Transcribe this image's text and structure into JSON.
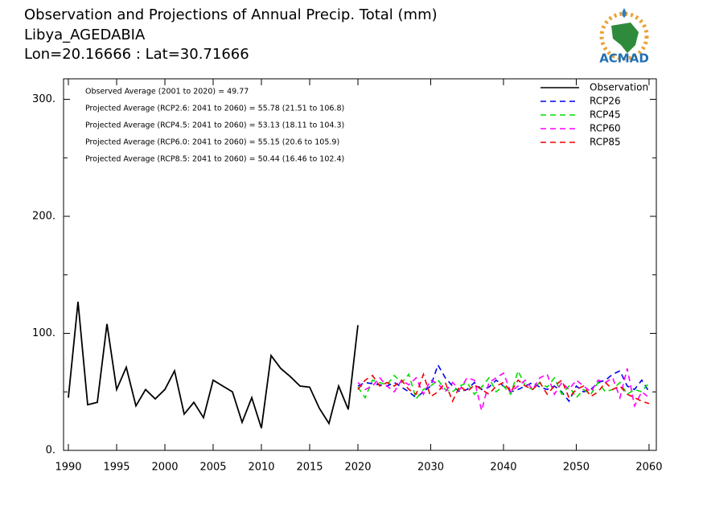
{
  "chart_data": {
    "type": "line",
    "title": "Observation and Projections of Annual Precip. Total (mm)",
    "subtitle": "Libya_AGEDABIA",
    "location": "Lon=20.16666 : Lat=30.71666",
    "logo_text": "ACMAD",
    "annotations": [
      "Observed Average (2001 to 2020) = 49.77",
      "Projected Average (RCP2.6: 2041 to 2060) = 55.78 (21.51 to 106.8)",
      "Projected Average (RCP4.5: 2041 to 2060) = 53.13 (18.11 to 104.3)",
      "Projected Average (RCP6.0: 2041 to 2060) = 55.15 (20.6 to 105.9)",
      "Projected Average (RCP8.5: 2041 to 2060) = 50.44 (16.46 to 102.4)"
    ],
    "xlim": [
      1989.5,
      2061
    ],
    "xticks": [
      1990,
      1995,
      2000,
      2005,
      2010,
      2015,
      2020,
      2030,
      2040,
      2050,
      2060
    ],
    "ylim": [
      0,
      317.5
    ],
    "yticks": [
      {
        "value": 0,
        "label": "0."
      },
      {
        "value": 100,
        "label": "100."
      },
      {
        "value": 200,
        "label": "200."
      },
      {
        "value": 300,
        "label": "300."
      }
    ],
    "y_minor_ticks": [
      50,
      150,
      250
    ],
    "series": [
      {
        "name": "Observation",
        "color": "#000000",
        "dashed": false,
        "x": [
          1990,
          1991,
          1992,
          1993,
          1994,
          1995,
          1996,
          1997,
          1998,
          1999,
          2000,
          2001,
          2002,
          2003,
          2004,
          2005,
          2006,
          2007,
          2008,
          2009,
          2010,
          2011,
          2012,
          2013,
          2014,
          2015,
          2016,
          2017,
          2018,
          2019,
          2020
        ],
        "values": [
          45,
          127,
          39,
          41,
          108,
          52,
          71,
          38,
          52,
          44,
          52,
          68,
          31,
          41,
          28,
          60,
          55,
          50,
          24,
          45,
          19,
          81,
          70,
          63,
          55,
          54,
          36,
          23,
          55,
          35,
          107
        ]
      },
      {
        "name": "RCP26",
        "color": "#0000ee",
        "dashed": true,
        "x": [
          2020,
          2021,
          2022,
          2023,
          2024,
          2025,
          2026,
          2027,
          2028,
          2029,
          2030,
          2031,
          2032,
          2033,
          2034,
          2035,
          2036,
          2037,
          2038,
          2039,
          2040,
          2041,
          2042,
          2043,
          2044,
          2045,
          2046,
          2047,
          2048,
          2049,
          2050,
          2051,
          2052,
          2053,
          2054,
          2055,
          2056,
          2057,
          2058,
          2059,
          2060
        ],
        "values": [
          55,
          58,
          57,
          56,
          55,
          58,
          54,
          50,
          45,
          50,
          55,
          73,
          62,
          55,
          50,
          52,
          58,
          52,
          54,
          60,
          55,
          50,
          52,
          55,
          58,
          54,
          52,
          55,
          50,
          42,
          55,
          50,
          52,
          58,
          60,
          65,
          68,
          55,
          52,
          60,
          50
        ]
      },
      {
        "name": "RCP45",
        "color": "#00dd00",
        "dashed": true,
        "x": [
          2020,
          2021,
          2022,
          2023,
          2024,
          2025,
          2026,
          2027,
          2028,
          2029,
          2030,
          2031,
          2032,
          2033,
          2034,
          2035,
          2036,
          2037,
          2038,
          2039,
          2040,
          2041,
          2042,
          2043,
          2044,
          2045,
          2046,
          2047,
          2048,
          2049,
          2050,
          2051,
          2052,
          2053,
          2054,
          2055,
          2056,
          2057,
          2058,
          2059,
          2060
        ],
        "values": [
          54,
          45,
          60,
          58,
          56,
          64,
          58,
          65,
          44,
          52,
          55,
          60,
          52,
          50,
          55,
          58,
          48,
          54,
          62,
          50,
          55,
          48,
          68,
          55,
          52,
          58,
          54,
          62,
          48,
          55,
          45,
          52,
          48,
          58,
          50,
          52,
          58,
          48,
          52,
          50,
          58
        ]
      },
      {
        "name": "RCP60",
        "color": "#ff00ff",
        "dashed": true,
        "x": [
          2020,
          2021,
          2022,
          2023,
          2024,
          2025,
          2026,
          2027,
          2028,
          2029,
          2030,
          2031,
          2032,
          2033,
          2034,
          2035,
          2036,
          2037,
          2038,
          2039,
          2040,
          2041,
          2042,
          2043,
          2044,
          2045,
          2046,
          2047,
          2048,
          2049,
          2050,
          2051,
          2052,
          2053,
          2054,
          2055,
          2056,
          2057,
          2058,
          2059,
          2060
        ],
        "values": [
          58,
          52,
          55,
          62,
          55,
          50,
          60,
          56,
          62,
          48,
          60,
          57,
          50,
          58,
          52,
          62,
          60,
          34,
          58,
          62,
          66,
          50,
          55,
          60,
          52,
          62,
          65,
          48,
          58,
          52,
          60,
          55,
          50,
          60,
          58,
          62,
          45,
          70,
          38,
          50,
          45
        ]
      },
      {
        "name": "RCP85",
        "color": "#ee0000",
        "dashed": true,
        "x": [
          2020,
          2021,
          2022,
          2023,
          2024,
          2025,
          2026,
          2027,
          2028,
          2029,
          2030,
          2031,
          2032,
          2033,
          2034,
          2035,
          2036,
          2037,
          2038,
          2039,
          2040,
          2041,
          2042,
          2043,
          2044,
          2045,
          2046,
          2047,
          2048,
          2049,
          2050,
          2051,
          2052,
          2053,
          2054,
          2055,
          2056,
          2057,
          2058,
          2059,
          2060
        ],
        "values": [
          52,
          60,
          64,
          55,
          58,
          55,
          60,
          52,
          48,
          65,
          46,
          50,
          58,
          42,
          55,
          50,
          56,
          52,
          48,
          55,
          58,
          50,
          60,
          55,
          52,
          58,
          48,
          55,
          60,
          45,
          52,
          55,
          46,
          50,
          58,
          52,
          55,
          48,
          45,
          42,
          40
        ]
      }
    ]
  }
}
